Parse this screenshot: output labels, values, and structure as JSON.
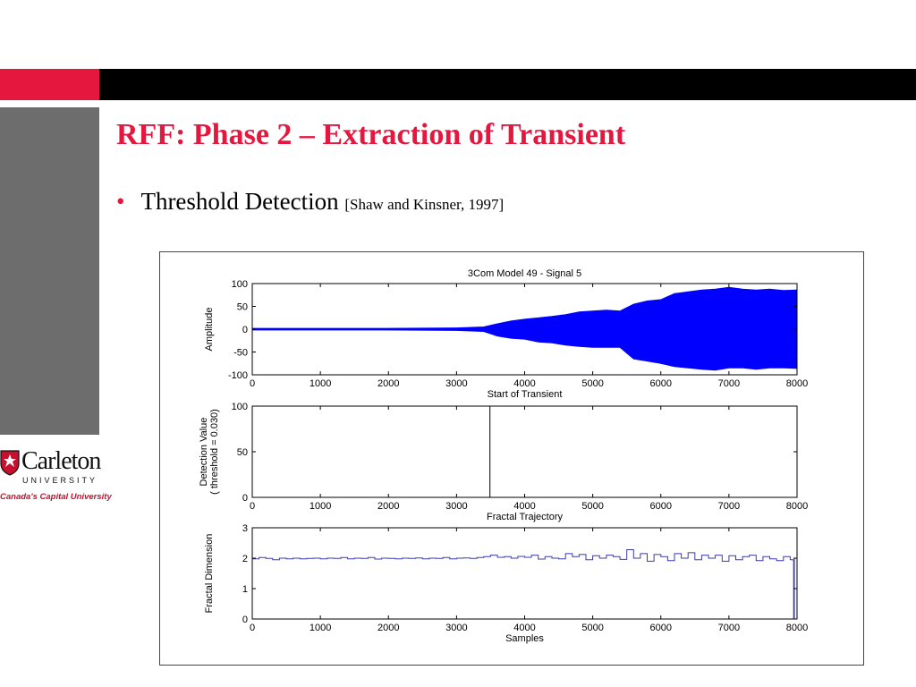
{
  "slide": {
    "title": "RFF: Phase 2 – Extraction of Transient",
    "bullet_text": "Threshold Detection",
    "bullet_citation": "[Shaw and Kinsner, 1997]"
  },
  "logo": {
    "name": "Carleton",
    "university": "UNIVERSITY",
    "tagline": "Canada's Capital University"
  },
  "colors": {
    "accent_red": "#e5173f",
    "signal_blue": "#0000ff",
    "trajectory_blue": "#3b3bb0"
  },
  "chart_data": [
    {
      "type": "area",
      "title": "3Com Model 49 - Signal 5",
      "xlabel": "Start of Transient",
      "ylabel": "Amplitude",
      "xlim": [
        0,
        8000
      ],
      "ylim": [
        -100,
        100
      ],
      "xticks": [
        0,
        1000,
        2000,
        3000,
        4000,
        5000,
        6000,
        7000,
        8000
      ],
      "yticks": [
        100,
        50,
        0,
        -50,
        -100
      ],
      "envelope": {
        "x": [
          0,
          1000,
          2000,
          3000,
          3400,
          3600,
          3800,
          4000,
          4200,
          4400,
          4600,
          4800,
          5000,
          5200,
          5400,
          5600,
          5800,
          6000,
          6200,
          6400,
          6600,
          6800,
          7000,
          7200,
          7400,
          7600,
          7800,
          8000
        ],
        "upper": [
          2,
          2,
          2,
          3,
          5,
          12,
          18,
          22,
          25,
          28,
          32,
          38,
          40,
          42,
          40,
          55,
          62,
          65,
          78,
          82,
          86,
          88,
          92,
          88,
          86,
          88,
          85,
          86
        ],
        "lower": [
          -2,
          -2,
          -2,
          -3,
          -5,
          -15,
          -20,
          -22,
          -28,
          -30,
          -35,
          -38,
          -40,
          -40,
          -40,
          -65,
          -70,
          -75,
          -82,
          -85,
          -88,
          -90,
          -85,
          -85,
          -88,
          -85,
          -85,
          -86
        ]
      }
    },
    {
      "type": "line",
      "xlabel": "Fractal Trajectory",
      "ylabel": "Detection Value\n( threshold = 0.030)",
      "xlim": [
        0,
        8000
      ],
      "ylim": [
        0,
        100
      ],
      "xticks": [
        0,
        1000,
        2000,
        3000,
        4000,
        5000,
        6000,
        7000,
        8000
      ],
      "yticks": [
        100,
        50,
        0
      ],
      "series": [
        {
          "x": [
            0,
            3490,
            3490,
            3490,
            3490,
            8000
          ],
          "y": [
            0,
            0,
            100,
            100,
            0,
            0
          ]
        }
      ]
    },
    {
      "type": "line",
      "xlabel": "Samples",
      "ylabel": "Fractal Dimension",
      "xlim": [
        0,
        8000
      ],
      "ylim": [
        0,
        3
      ],
      "xticks": [
        0,
        1000,
        2000,
        3000,
        4000,
        5000,
        6000,
        7000,
        8000
      ],
      "yticks": [
        3,
        2,
        1,
        0
      ],
      "series": [
        {
          "x": [
            0,
            100,
            200,
            300,
            400,
            500,
            600,
            700,
            800,
            900,
            1000,
            1100,
            1200,
            1300,
            1400,
            1500,
            1600,
            1700,
            1800,
            1900,
            2000,
            2100,
            2200,
            2300,
            2400,
            2500,
            2600,
            2700,
            2800,
            2900,
            3000,
            3100,
            3200,
            3300,
            3400,
            3500,
            3600,
            3700,
            3800,
            3900,
            4000,
            4100,
            4200,
            4300,
            4400,
            4500,
            4600,
            4700,
            4800,
            4900,
            5000,
            5100,
            5200,
            5300,
            5400,
            5500,
            5600,
            5700,
            5800,
            5900,
            6000,
            6100,
            6200,
            6300,
            6400,
            6500,
            6600,
            6700,
            6800,
            6900,
            7000,
            7100,
            7200,
            7300,
            7400,
            7500,
            7600,
            7700,
            7800,
            7900,
            7950,
            7960,
            8000
          ],
          "y": [
            1.98,
            2.02,
            1.99,
            1.95,
            2.0,
            1.98,
            2.0,
            1.98,
            1.99,
            2.0,
            1.98,
            2.0,
            1.99,
            2.02,
            1.98,
            2.0,
            1.99,
            2.02,
            1.97,
            2.0,
            1.99,
            1.98,
            2.0,
            1.99,
            2.01,
            1.98,
            2.0,
            1.99,
            2.02,
            1.98,
            2.0,
            2.01,
            1.99,
            2.02,
            2.05,
            2.1,
            2.03,
            2.05,
            2.0,
            2.06,
            2.03,
            2.1,
            1.97,
            2.05,
            2.0,
            1.98,
            2.15,
            2.05,
            2.12,
            1.95,
            2.08,
            2.0,
            2.1,
            2.05,
            1.96,
            2.28,
            2.0,
            2.15,
            1.9,
            2.12,
            2.05,
            1.92,
            2.15,
            2.0,
            2.18,
            1.95,
            2.1,
            2.0,
            2.1,
            1.9,
            2.08,
            1.95,
            2.05,
            2.1,
            1.92,
            2.05,
            1.98,
            1.92,
            2.05,
            1.95,
            0.0,
            2.0,
            2.0
          ]
        }
      ]
    }
  ]
}
